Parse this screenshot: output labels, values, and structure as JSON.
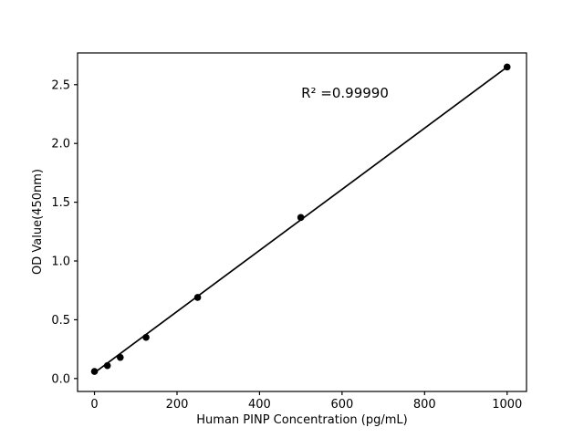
{
  "chart_data": {
    "type": "scatter",
    "title": "",
    "xlabel": "Human PINP Concentration (pg/mL)",
    "ylabel": "OD Value(450nm)",
    "annotation": "R² =0.99990",
    "r_squared": 0.9999,
    "series": [
      {
        "name": "standards",
        "x": [
          0,
          31.25,
          62.5,
          125,
          250,
          500,
          1000
        ],
        "y": [
          0.06,
          0.11,
          0.18,
          0.35,
          0.69,
          1.37,
          2.65
        ]
      }
    ],
    "fit_line": {
      "x": [
        0,
        1000
      ],
      "y": [
        0.05,
        2.65
      ]
    },
    "x_ticks": [
      0,
      200,
      400,
      600,
      800,
      1000
    ],
    "x_tick_labels": [
      "0",
      "200",
      "400",
      "600",
      "800",
      "1000"
    ],
    "y_ticks": [
      0.0,
      0.5,
      1.0,
      1.5,
      2.0,
      2.5
    ],
    "y_tick_labels": [
      "0.0",
      "0.5",
      "1.0",
      "1.5",
      "2.0",
      "2.5"
    ],
    "xlim": [
      -41,
      1047
    ],
    "ylim": [
      -0.11,
      2.77
    ],
    "grid": false,
    "legend": "none",
    "marker_color": "#000000",
    "line_color": "#000000",
    "axis_color": "#000000",
    "background": "#ffffff"
  }
}
